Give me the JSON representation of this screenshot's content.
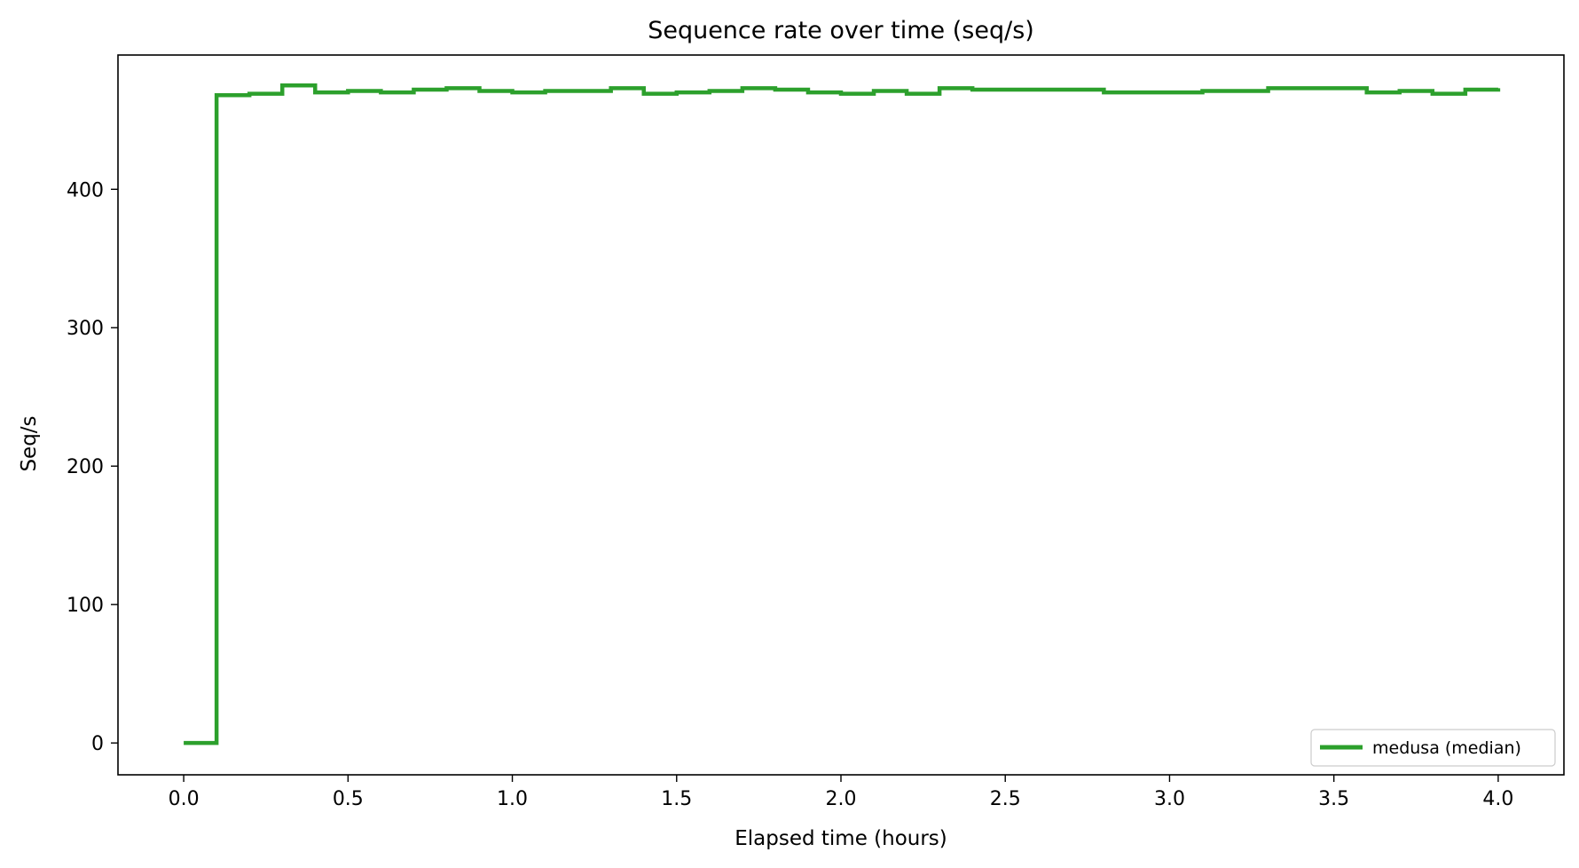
{
  "chart_data": {
    "type": "line",
    "title": "Sequence rate over time (seq/s)",
    "xlabel": "Elapsed time (hours)",
    "ylabel": "Seq/s",
    "xlim": [
      -0.2,
      4.2
    ],
    "ylim": [
      -23,
      497
    ],
    "xticks": [
      0.0,
      0.5,
      1.0,
      1.5,
      2.0,
      2.5,
      3.0,
      3.5,
      4.0
    ],
    "xtick_labels": [
      "0.0",
      "0.5",
      "1.0",
      "1.5",
      "2.0",
      "2.5",
      "3.0",
      "3.5",
      "4.0"
    ],
    "yticks": [
      0,
      100,
      200,
      300,
      400
    ],
    "ytick_labels": [
      "0",
      "100",
      "200",
      "300",
      "400"
    ],
    "grid": false,
    "legend_position": "bottom-right",
    "step": "post",
    "series": [
      {
        "name": "medusa (median)",
        "color": "#2ca02c",
        "x": [
          0.0,
          0.1,
          0.2,
          0.3,
          0.4,
          0.5,
          0.6,
          0.7,
          0.8,
          0.9,
          1.0,
          1.1,
          1.2,
          1.3,
          1.4,
          1.5,
          1.6,
          1.7,
          1.8,
          1.9,
          2.0,
          2.1,
          2.2,
          2.3,
          2.4,
          2.5,
          2.6,
          2.7,
          2.8,
          2.9,
          3.0,
          3.1,
          3.2,
          3.3,
          3.4,
          3.5,
          3.6,
          3.7,
          3.8,
          3.9,
          4.0
        ],
        "y": [
          0,
          468,
          469,
          475,
          470,
          471,
          470,
          472,
          473,
          471,
          470,
          471,
          471,
          473,
          469,
          470,
          471,
          473,
          472,
          470,
          469,
          471,
          469,
          473,
          472,
          472,
          472,
          472,
          470,
          470,
          470,
          471,
          471,
          473,
          473,
          473,
          470,
          471,
          469,
          472,
          473
        ]
      }
    ]
  }
}
